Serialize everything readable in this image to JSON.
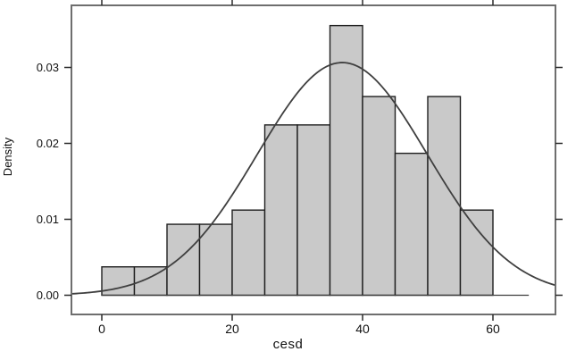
{
  "chart_data": {
    "type": "histogram",
    "title": "",
    "xlabel": "cesd",
    "ylabel": "Density",
    "x_tick_labels": [
      "0",
      "20",
      "40",
      "60"
    ],
    "x_tick_values": [
      0,
      20,
      40,
      60
    ],
    "y_tick_labels": [
      "0.00",
      "0.01",
      "0.02",
      "0.03"
    ],
    "y_tick_values": [
      0.0,
      0.01,
      0.02,
      0.03
    ],
    "xlim": [
      -4.7,
      69.6
    ],
    "ylim": [
      -0.0025,
      0.0383
    ],
    "grid": false,
    "legend": "none",
    "n_total": 107,
    "bin_width": 5,
    "bins": [
      {
        "from": 0,
        "to": 5,
        "count": 2,
        "density": 0.003738
      },
      {
        "from": 5,
        "to": 10,
        "count": 2,
        "density": 0.003738
      },
      {
        "from": 10,
        "to": 15,
        "count": 5,
        "density": 0.009346
      },
      {
        "from": 15,
        "to": 20,
        "count": 5,
        "density": 0.009346
      },
      {
        "from": 20,
        "to": 25,
        "count": 6,
        "density": 0.011215
      },
      {
        "from": 25,
        "to": 30,
        "count": 12,
        "density": 0.02243
      },
      {
        "from": 30,
        "to": 35,
        "count": 12,
        "density": 0.02243
      },
      {
        "from": 35,
        "to": 40,
        "count": 19,
        "density": 0.035514
      },
      {
        "from": 40,
        "to": 45,
        "count": 14,
        "density": 0.026168
      },
      {
        "from": 45,
        "to": 50,
        "count": 10,
        "density": 0.018692
      },
      {
        "from": 50,
        "to": 55,
        "count": 14,
        "density": 0.026168
      },
      {
        "from": 55,
        "to": 60,
        "count": 6,
        "density": 0.011215
      }
    ],
    "normal_curve": {
      "mean": 36.89,
      "sd": 13.02,
      "peak_density": 0.0306,
      "x_from": -4.7,
      "x_to": 69.6
    },
    "baseline": {
      "from": 0,
      "to": 65.5,
      "at_density": 0
    },
    "colors": {
      "bar_fill": "#c9c9c9",
      "bar_border": "#1f1f1f",
      "curve": "#3f3f3f",
      "frame": "#6e6e6e",
      "tick": "#2a2a2a",
      "text": "#111111",
      "background": "#ffffff"
    }
  }
}
